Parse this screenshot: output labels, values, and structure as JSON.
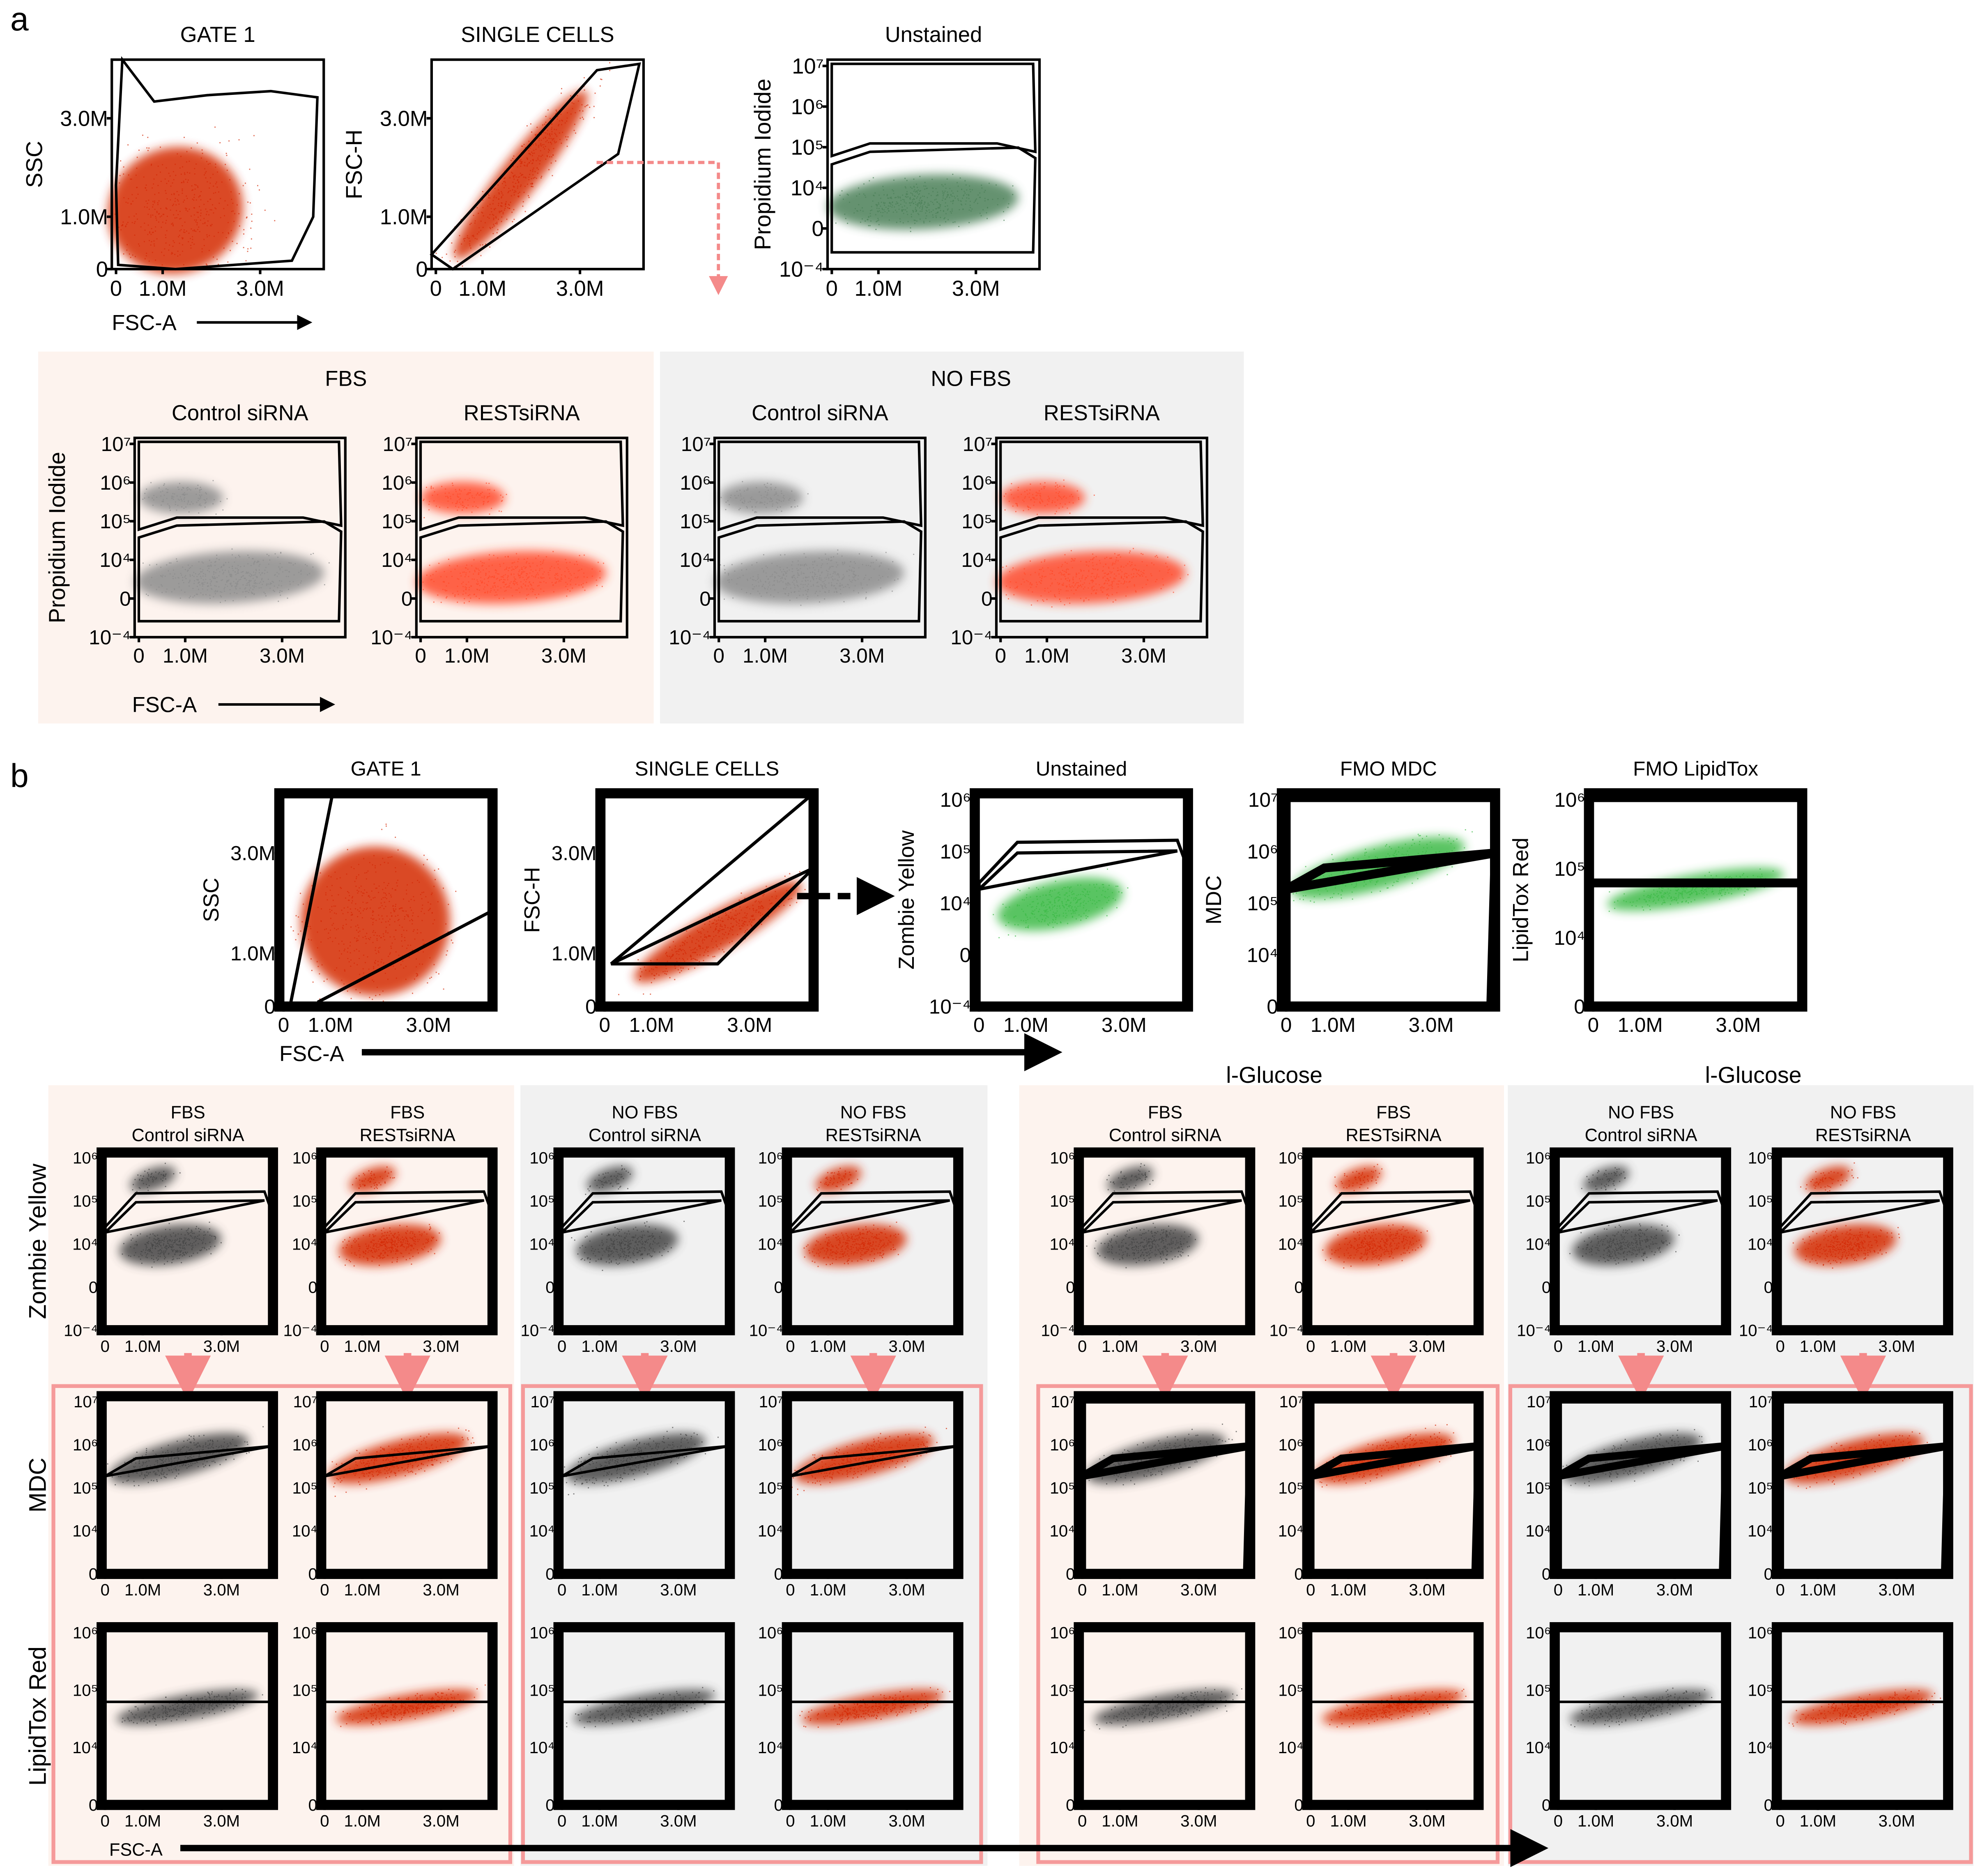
{
  "colors": {
    "red": "#d42a05",
    "pi_red": "#ff4a2a",
    "gray": "#8c8c8c",
    "dark_gray": "#454545",
    "green_a": "#4b8058",
    "green_b": "#3cba46",
    "bg_fbs": "#fdf3ee",
    "bg_nofbs": "#f1f1f1",
    "pink_box": "#f59a9a",
    "arrow_pink": "#f48a8a"
  },
  "a": {
    "label": "a",
    "x_axis_label": "FSC-A",
    "top": [
      {
        "title": "GATE 1",
        "ylabel": "SSC",
        "type": "gate1",
        "yticks": [
          "3.0M",
          "1.0M",
          "0"
        ],
        "xticks": [
          "0",
          "1.0M",
          "3.0M"
        ],
        "color": "red"
      },
      {
        "title": "SINGLE CELLS",
        "ylabel": "FSC-H",
        "type": "single",
        "yticks": [
          "3.0M",
          "1.0M",
          "0"
        ],
        "xticks": [
          "0",
          "1.0M",
          "3.0M"
        ],
        "color": "red"
      },
      {
        "title": "Unstained",
        "ylabel": "Propidium Iodide",
        "type": "pi",
        "yticks": [
          "10⁷",
          "10⁶",
          "10⁵",
          "10⁴",
          "0",
          "10⁻⁴"
        ],
        "xticks": [
          "0",
          "1.0M",
          "3.0M"
        ],
        "color": "green_a"
      }
    ],
    "groups": [
      {
        "title": "FBS",
        "bg": "bg_fbs",
        "panels": [
          {
            "title": "Control siRNA",
            "color": "gray"
          },
          {
            "title": "RESTsiRNA",
            "color": "pi_red"
          }
        ]
      },
      {
        "title": "NO FBS",
        "bg": "bg_nofbs",
        "panels": [
          {
            "title": "Control siRNA",
            "color": "gray"
          },
          {
            "title": "RESTsiRNA",
            "color": "pi_red"
          }
        ]
      }
    ],
    "bottom_ylabel": "Propidium Iodide",
    "bottom_yticks": [
      "10⁷",
      "10⁶",
      "10⁵",
      "10⁴",
      "0",
      "10⁻⁴"
    ],
    "bottom_xticks": [
      "0",
      "1.0M",
      "3.0M"
    ]
  },
  "b": {
    "label": "b",
    "x_axis_label": "FSC-A",
    "top": [
      {
        "title": "GATE 1",
        "ylabel": "SSC",
        "type": "gate1b",
        "yticks": [
          "3.0M",
          "1.0M",
          "0"
        ],
        "xticks": [
          "0",
          "1.0M",
          "3.0M"
        ],
        "color": "red"
      },
      {
        "title": "SINGLE CELLS",
        "ylabel": "FSC-H",
        "type": "singleb",
        "yticks": [
          "3.0M",
          "1.0M",
          "0"
        ],
        "xticks": [
          "0",
          "1.0M",
          "3.0M"
        ],
        "color": "red"
      },
      {
        "title": "Unstained",
        "ylabel": "Zombie Yellow",
        "type": "zy",
        "yticks": [
          "10⁶",
          "10⁵",
          "10⁴",
          "0",
          "10⁻⁴"
        ],
        "xticks": [
          "0",
          "1.0M",
          "3.0M"
        ],
        "color": "green_b"
      },
      {
        "title": "FMO MDC",
        "ylabel": "MDC",
        "type": "mdc",
        "yticks": [
          "10⁷",
          "10⁶",
          "10⁵",
          "10⁴",
          "0"
        ],
        "xticks": [
          "0",
          "1.0M",
          "3.0M"
        ],
        "color": "green_b"
      },
      {
        "title": "FMO LipidTox",
        "ylabel": "LipidTox Red",
        "type": "lt",
        "yticks": [
          "10⁶",
          "10⁵",
          "10⁴",
          "0"
        ],
        "xticks": [
          "0",
          "1.0M",
          "3.0M"
        ],
        "color": "green_b"
      }
    ],
    "groups": [
      {
        "title": "",
        "bg": "bg_fbs",
        "columns": [
          {
            "line1": "FBS",
            "line2": "Control siRNA",
            "color": "dark_gray"
          },
          {
            "line1": "FBS",
            "line2": "RESTsiRNA",
            "color": "red"
          }
        ]
      },
      {
        "title": "",
        "bg": "bg_nofbs",
        "columns": [
          {
            "line1": "NO FBS",
            "line2": "Control siRNA",
            "color": "dark_gray"
          },
          {
            "line1": "NO FBS",
            "line2": "RESTsiRNA",
            "color": "red"
          }
        ]
      },
      {
        "title": "l-Glucose",
        "bg": "bg_fbs",
        "columns": [
          {
            "line1": "FBS",
            "line2": "Control siRNA",
            "color": "dark_gray"
          },
          {
            "line1": "FBS",
            "line2": "RESTsiRNA",
            "color": "red"
          }
        ]
      },
      {
        "title": "l-Glucose",
        "bg": "bg_nofbs",
        "columns": [
          {
            "line1": "NO FBS",
            "line2": "Control siRNA",
            "color": "dark_gray"
          },
          {
            "line1": "NO FBS",
            "line2": "RESTsiRNA",
            "color": "red"
          }
        ]
      }
    ],
    "rows": [
      {
        "label": "Zombie Yellow",
        "type": "zy",
        "yticks": [
          "10⁶",
          "10⁵",
          "10⁴",
          "0",
          "10⁻⁴"
        ]
      },
      {
        "label": "MDC",
        "type": "mdc",
        "yticks": [
          "10⁷",
          "10⁶",
          "10⁵",
          "10⁴",
          "0"
        ]
      },
      {
        "label": "LipidTox Red",
        "type": "lt",
        "yticks": [
          "10⁶",
          "10⁵",
          "10⁴",
          "0"
        ]
      }
    ],
    "xticks": [
      "0",
      "1.0M",
      "3.0M"
    ]
  }
}
